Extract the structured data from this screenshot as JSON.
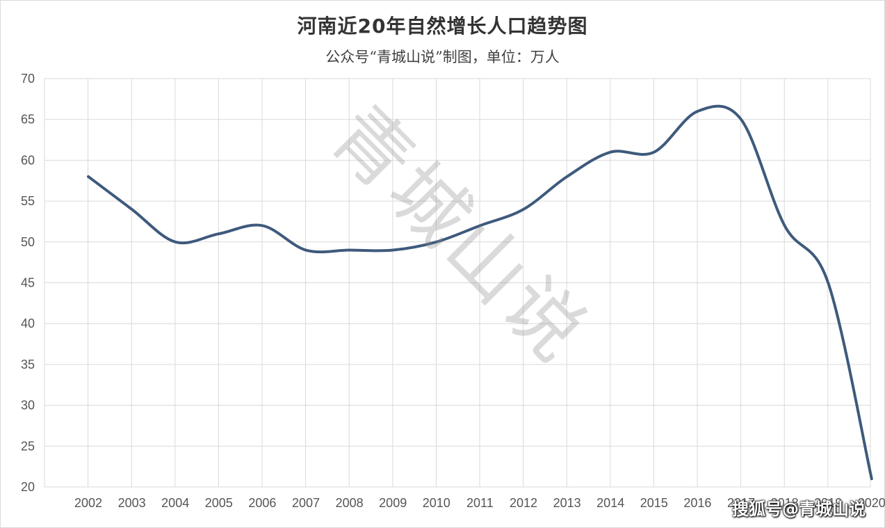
{
  "chart_data": {
    "type": "line",
    "title": "河南近20年自然增长人口趋势图",
    "subtitle": "公众号“青城山说”制图，单位：万人",
    "x": [
      "2002",
      "2003",
      "2004",
      "2005",
      "2006",
      "2007",
      "2008",
      "2009",
      "2010",
      "2011",
      "2012",
      "2013",
      "2014",
      "2015",
      "2016",
      "2017",
      "2018",
      "2019",
      "2020"
    ],
    "series": [
      {
        "values": [
          58,
          54,
          50,
          51,
          52,
          49,
          49,
          49,
          50,
          52,
          54,
          58,
          61,
          61,
          66,
          65,
          52,
          45,
          21
        ]
      }
    ],
    "ylim": [
      20,
      70
    ],
    "yticks": [
      20,
      25,
      30,
      35,
      40,
      45,
      50,
      55,
      60,
      65,
      70
    ],
    "grid": true,
    "line_color": "#3e5a7c"
  },
  "watermark": "青城山说",
  "source_watermark": "搜狐号@青城山说"
}
